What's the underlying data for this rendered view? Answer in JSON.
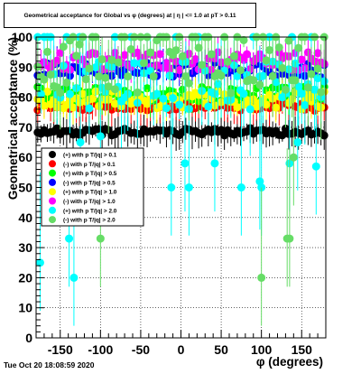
{
  "chart_data": {
    "type": "scatter",
    "title": "Geometrical acceptance for Global vs φ (degrees) at | η | <= 1.0 at pT > 0.11",
    "xlabel": "φ (degrees)",
    "ylabel": "Geometrical acceptance (%)",
    "xlim": [
      -180,
      180
    ],
    "ylim": [
      0,
      100
    ],
    "x_ticks": [
      "-150",
      "-100",
      "-50",
      "0",
      "50",
      "100",
      "150"
    ],
    "y_ticks": [
      "0",
      "10",
      "20",
      "30",
      "40",
      "50",
      "60",
      "70",
      "80",
      "90",
      "100"
    ],
    "grid": true,
    "legend_position": "lower-left",
    "series": [
      {
        "name": "(+) with p T/|q| > 0.1",
        "color": "#000000",
        "mean": 68.5,
        "spread": 1.2
      },
      {
        "name": "(-) with p T/|q| > 0.1",
        "color": "#ff0000",
        "mean": 77,
        "spread": 1.5
      },
      {
        "name": "(+) with p T/|q| > 0.5",
        "color": "#00ff00",
        "mean": 81,
        "spread": 2.5
      },
      {
        "name": "(-) with p T/|q| > 0.5",
        "color": "#0000ff",
        "mean": 89,
        "spread": 2.5
      },
      {
        "name": "(+) with p T/|q| > 1.0",
        "color": "#ffff00",
        "mean": 79,
        "spread": 3
      },
      {
        "name": "(-) with p T/|q| > 1.0",
        "color": "#ff00ff",
        "mean": 92,
        "spread": 3
      },
      {
        "name": "(+) with p T/|q| > 2.0",
        "color": "#00ffff",
        "mean": 84,
        "spread": 8,
        "outliers": [
          [
            -175,
            25
          ],
          [
            -139,
            33
          ],
          [
            -133,
            20
          ],
          [
            -125,
            65
          ],
          [
            -100,
            67
          ],
          [
            -12,
            50
          ],
          [
            5,
            58
          ],
          [
            10,
            50
          ],
          [
            42,
            58
          ],
          [
            75,
            50
          ],
          [
            98,
            52
          ],
          [
            100,
            50
          ],
          [
            135,
            58
          ],
          [
            145,
            65
          ],
          [
            168,
            57
          ]
        ]
      },
      {
        "name": "(-) with p T/|q| > 2.0",
        "color": "#66dd66",
        "mean": 90,
        "spread": 9,
        "outliers": [
          [
            -100,
            33
          ],
          [
            100,
            20
          ],
          [
            132,
            33
          ],
          [
            135,
            33
          ],
          [
            140,
            60
          ]
        ]
      }
    ]
  },
  "timestamp": "Tue Oct 20 18:08:59 2020"
}
